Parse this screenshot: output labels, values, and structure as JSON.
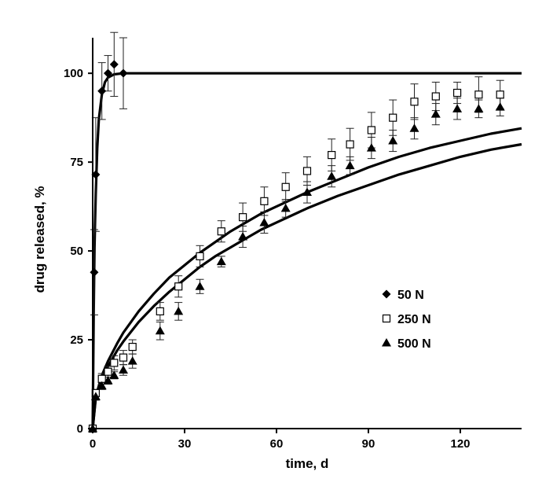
{
  "chart_data": {
    "type": "scatter",
    "title": "",
    "xlabel": "time, d",
    "ylabel": "drug released, %",
    "xlim": [
      0,
      140
    ],
    "ylim": [
      0,
      110
    ],
    "x_ticks": [
      0,
      30,
      60,
      90,
      120
    ],
    "y_ticks": [
      0,
      25,
      50,
      75,
      100
    ],
    "x_tick_labels": [
      "0",
      "30",
      "60",
      "90",
      "120"
    ],
    "y_tick_labels": [
      "0",
      "25",
      "50",
      "75",
      "100"
    ],
    "legend_position": "right-middle",
    "series": [
      {
        "name": "50 N",
        "marker": "filled-diamond",
        "points": [
          {
            "x": 0,
            "y": 0,
            "err": 0
          },
          {
            "x": 0.5,
            "y": 44,
            "err": 12
          },
          {
            "x": 1,
            "y": 71.5,
            "err": 16
          },
          {
            "x": 3,
            "y": 95,
            "err": 8
          },
          {
            "x": 5,
            "y": 100,
            "err": 5
          },
          {
            "x": 7,
            "y": 102.5,
            "err": 9
          },
          {
            "x": 10,
            "y": 100,
            "err": 10
          }
        ]
      },
      {
        "name": "250 N",
        "marker": "open-square",
        "points": [
          {
            "x": 0,
            "y": 0,
            "err": 0
          },
          {
            "x": 1,
            "y": 10,
            "err": 1
          },
          {
            "x": 3,
            "y": 14,
            "err": 1.5
          },
          {
            "x": 5,
            "y": 16,
            "err": 1.5
          },
          {
            "x": 7,
            "y": 18.5,
            "err": 2
          },
          {
            "x": 10,
            "y": 20,
            "err": 2
          },
          {
            "x": 13,
            "y": 23,
            "err": 2
          },
          {
            "x": 22,
            "y": 33,
            "err": 2.5
          },
          {
            "x": 28,
            "y": 40,
            "err": 3
          },
          {
            "x": 35,
            "y": 48.5,
            "err": 3
          },
          {
            "x": 42,
            "y": 55.5,
            "err": 3
          },
          {
            "x": 49,
            "y": 59.5,
            "err": 4
          },
          {
            "x": 56,
            "y": 64,
            "err": 4
          },
          {
            "x": 63,
            "y": 68,
            "err": 4
          },
          {
            "x": 70,
            "y": 72.5,
            "err": 4
          },
          {
            "x": 78,
            "y": 77,
            "err": 4.5
          },
          {
            "x": 84,
            "y": 80,
            "err": 4.5
          },
          {
            "x": 91,
            "y": 84,
            "err": 5
          },
          {
            "x": 98,
            "y": 87.5,
            "err": 5
          },
          {
            "x": 105,
            "y": 92,
            "err": 5
          },
          {
            "x": 112,
            "y": 93.5,
            "err": 4
          },
          {
            "x": 119,
            "y": 94.5,
            "err": 3
          },
          {
            "x": 126,
            "y": 94,
            "err": 5
          },
          {
            "x": 133,
            "y": 94,
            "err": 4
          }
        ]
      },
      {
        "name": "500 N",
        "marker": "filled-triangle",
        "points": [
          {
            "x": 0,
            "y": 0,
            "err": 0
          },
          {
            "x": 1,
            "y": 9,
            "err": 1
          },
          {
            "x": 3,
            "y": 12,
            "err": 1
          },
          {
            "x": 5,
            "y": 13.5,
            "err": 1
          },
          {
            "x": 7,
            "y": 15,
            "err": 1
          },
          {
            "x": 10,
            "y": 16.5,
            "err": 1.5
          },
          {
            "x": 13,
            "y": 19,
            "err": 2
          },
          {
            "x": 22,
            "y": 27.5,
            "err": 2.5
          },
          {
            "x": 28,
            "y": 33,
            "err": 2.5
          },
          {
            "x": 35,
            "y": 40,
            "err": 2
          },
          {
            "x": 42,
            "y": 47,
            "err": 1.5
          },
          {
            "x": 49,
            "y": 54,
            "err": 3
          },
          {
            "x": 56,
            "y": 58,
            "err": 3
          },
          {
            "x": 63,
            "y": 62,
            "err": 2.5
          },
          {
            "x": 70,
            "y": 66.5,
            "err": 3
          },
          {
            "x": 78,
            "y": 71,
            "err": 3
          },
          {
            "x": 84,
            "y": 74,
            "err": 2.5
          },
          {
            "x": 91,
            "y": 79,
            "err": 3
          },
          {
            "x": 98,
            "y": 81,
            "err": 3
          },
          {
            "x": 105,
            "y": 84.5,
            "err": 3
          },
          {
            "x": 112,
            "y": 88.5,
            "err": 3
          },
          {
            "x": 119,
            "y": 90,
            "err": 3
          },
          {
            "x": 126,
            "y": 90,
            "err": 2.5
          },
          {
            "x": 133,
            "y": 90.5,
            "err": 2.5
          }
        ]
      }
    ],
    "fit_curves": [
      {
        "name": "50 N fit",
        "points": [
          [
            0,
            0
          ],
          [
            0.3,
            31
          ],
          [
            0.6,
            51
          ],
          [
            1,
            66
          ],
          [
            1.5,
            79
          ],
          [
            2,
            87
          ],
          [
            3,
            94
          ],
          [
            4,
            97.5
          ],
          [
            5,
            98.8
          ],
          [
            7,
            99.7
          ],
          [
            10,
            100
          ],
          [
            140,
            100
          ]
        ]
      },
      {
        "name": "250 N fit",
        "points": [
          [
            0,
            0
          ],
          [
            1,
            9
          ],
          [
            3,
            15
          ],
          [
            5,
            19
          ],
          [
            8,
            24
          ],
          [
            10,
            27
          ],
          [
            15,
            33
          ],
          [
            20,
            38
          ],
          [
            25,
            42.5
          ],
          [
            30,
            46
          ],
          [
            35,
            49.5
          ],
          [
            40,
            52.5
          ],
          [
            45,
            55.5
          ],
          [
            50,
            58
          ],
          [
            55,
            60.5
          ],
          [
            60,
            62.5
          ],
          [
            70,
            66.5
          ],
          [
            80,
            70
          ],
          [
            90,
            73.5
          ],
          [
            100,
            76.5
          ],
          [
            110,
            79
          ],
          [
            120,
            81
          ],
          [
            130,
            83
          ],
          [
            140,
            84.5
          ]
        ]
      },
      {
        "name": "500 N fit",
        "points": [
          [
            0,
            0
          ],
          [
            1,
            8.5
          ],
          [
            3,
            14
          ],
          [
            5,
            17.5
          ],
          [
            8,
            22
          ],
          [
            10,
            24.5
          ],
          [
            15,
            30
          ],
          [
            20,
            34.5
          ],
          [
            25,
            38.5
          ],
          [
            30,
            42
          ],
          [
            35,
            45.5
          ],
          [
            40,
            48.5
          ],
          [
            45,
            51
          ],
          [
            50,
            53.5
          ],
          [
            55,
            56
          ],
          [
            60,
            58
          ],
          [
            70,
            62
          ],
          [
            80,
            65.5
          ],
          [
            90,
            68.5
          ],
          [
            100,
            71.5
          ],
          [
            110,
            74
          ],
          [
            120,
            76.5
          ],
          [
            130,
            78.5
          ],
          [
            140,
            80
          ]
        ]
      }
    ]
  }
}
